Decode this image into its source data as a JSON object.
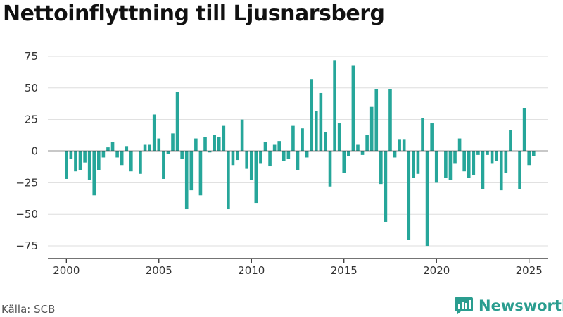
{
  "page": {
    "title": "Nettoinflyttning till Ljusnarsberg",
    "source": "Källa: SCB",
    "brand": "Newsworthy",
    "logo_icon": "bar-chart-logo-icon"
  },
  "colors": {
    "bar": "#26a69a",
    "zero_line": "#222222",
    "grid": "#dddddd",
    "axis": "#222222",
    "brand": "#2a9d8f"
  },
  "chart_data": {
    "type": "bar",
    "title": "Nettoinflyttning till Ljusnarsberg",
    "xlabel": "",
    "ylabel": "",
    "xlim": [
      1999.0,
      2026.0
    ],
    "ylim": [
      -85,
      85
    ],
    "x_ticks": [
      2000,
      2005,
      2010,
      2015,
      2020,
      2025
    ],
    "y_ticks": [
      75,
      50,
      25,
      0,
      -25,
      -50,
      -75
    ],
    "grid": true,
    "series": [
      {
        "x": [
          2000.0,
          2000.25,
          2000.5,
          2000.75,
          2001.0,
          2001.25,
          2001.5,
          2001.75,
          2002.0,
          2002.25,
          2002.5,
          2002.75,
          2003.0,
          2003.25,
          2003.5,
          2003.75,
          2004.0,
          2004.25,
          2004.5,
          2004.75,
          2005.0,
          2005.25,
          2005.5,
          2005.75,
          2006.0,
          2006.25,
          2006.5,
          2006.75,
          2007.0,
          2007.25,
          2007.5,
          2007.75,
          2008.0,
          2008.25,
          2008.5,
          2008.75,
          2009.0,
          2009.25,
          2009.5,
          2009.75,
          2010.0,
          2010.25,
          2010.5,
          2010.75,
          2011.0,
          2011.25,
          2011.5,
          2011.75,
          2012.0,
          2012.25,
          2012.5,
          2012.75,
          2013.0,
          2013.25,
          2013.5,
          2013.75,
          2014.0,
          2014.25,
          2014.5,
          2014.75,
          2015.0,
          2015.25,
          2015.5,
          2015.75,
          2016.0,
          2016.25,
          2016.5,
          2016.75,
          2017.0,
          2017.25,
          2017.5,
          2017.75,
          2018.0,
          2018.25,
          2018.5,
          2018.75,
          2019.0,
          2019.25,
          2019.5,
          2019.75,
          2020.0,
          2020.25,
          2020.5,
          2020.75,
          2021.0,
          2021.25,
          2021.5,
          2021.75,
          2022.0,
          2022.25,
          2022.5,
          2022.75,
          2023.0,
          2023.25,
          2023.5,
          2023.75,
          2024.0,
          2024.25,
          2024.5,
          2024.75,
          2025.0,
          2025.25
        ],
        "values": [
          -22,
          -6,
          -16,
          -15,
          -9,
          -23,
          -35,
          -15,
          -5,
          3,
          7,
          -5,
          -11,
          4,
          -16,
          0,
          -18,
          5,
          5,
          29,
          10,
          -22,
          -2,
          14,
          47,
          -6,
          -46,
          -31,
          10,
          -35,
          11,
          -1,
          13,
          11,
          20,
          -46,
          -11,
          -7,
          25,
          -14,
          -23,
          -41,
          -10,
          7,
          -12,
          5,
          8,
          -8,
          -6,
          20,
          -15,
          18,
          -5,
          57,
          32,
          46,
          15,
          -28,
          72,
          22,
          -17,
          -4,
          68,
          5,
          -3,
          13,
          35,
          49,
          -26,
          -56,
          49,
          -5,
          9,
          9,
          -70,
          -21,
          -18,
          26,
          -75,
          22,
          -25,
          0,
          -21,
          -23,
          -10,
          10,
          -16,
          -21,
          -19,
          -3,
          -30,
          -3,
          -10,
          -8,
          -31,
          -17,
          17,
          0,
          -30,
          34,
          -11,
          -4
        ]
      }
    ]
  }
}
